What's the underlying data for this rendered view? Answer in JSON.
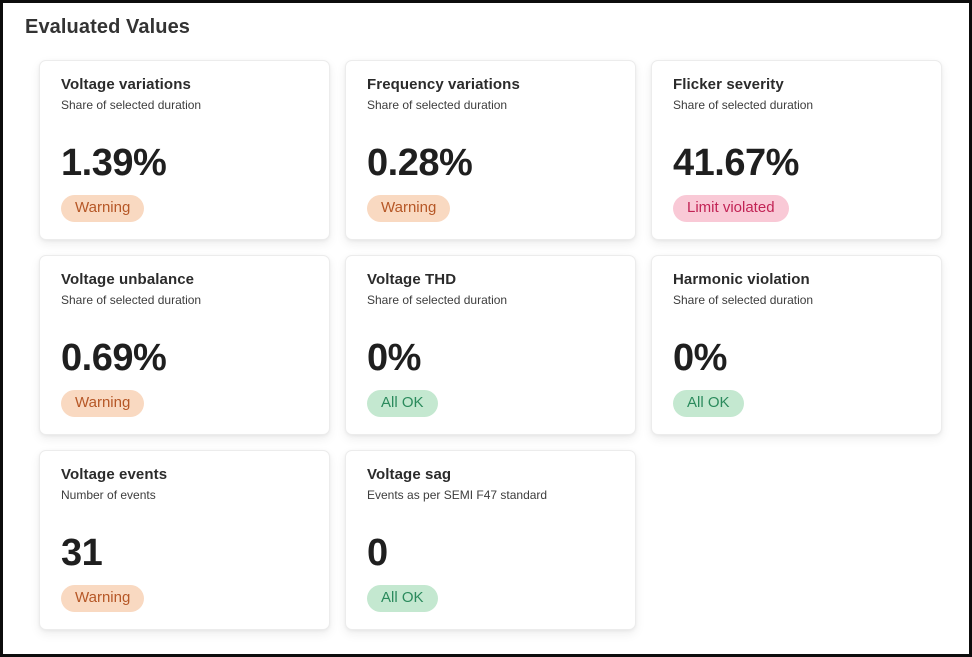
{
  "page": {
    "title": "Evaluated Values"
  },
  "status_colors": {
    "warning_bg": "#f9d9c1",
    "warning_text": "#b65726",
    "violated_bg": "#f9c9d6",
    "violated_text": "#c22355",
    "ok_bg": "#c4e8d0",
    "ok_text": "#2a8a5c"
  },
  "cards": [
    {
      "title": "Voltage variations",
      "subtitle": "Share of selected duration",
      "value": "1.39%",
      "status": "Warning",
      "status_type": "warning"
    },
    {
      "title": "Frequency variations",
      "subtitle": "Share of selected duration",
      "value": "0.28%",
      "status": "Warning",
      "status_type": "warning"
    },
    {
      "title": "Flicker severity",
      "subtitle": "Share of selected duration",
      "value": "41.67%",
      "status": "Limit violated",
      "status_type": "violated"
    },
    {
      "title": "Voltage unbalance",
      "subtitle": "Share of selected duration",
      "value": "0.69%",
      "status": "Warning",
      "status_type": "warning"
    },
    {
      "title": "Voltage THD",
      "subtitle": "Share of selected duration",
      "value": "0%",
      "status": "All OK",
      "status_type": "ok"
    },
    {
      "title": "Harmonic violation",
      "subtitle": "Share of selected duration",
      "value": "0%",
      "status": "All OK",
      "status_type": "ok"
    },
    {
      "title": "Voltage events",
      "subtitle": "Number of events",
      "value": "31",
      "status": "Warning",
      "status_type": "warning"
    },
    {
      "title": "Voltage sag",
      "subtitle": "Events as per SEMI F47 standard",
      "value": "0",
      "status": "All OK",
      "status_type": "ok"
    }
  ]
}
